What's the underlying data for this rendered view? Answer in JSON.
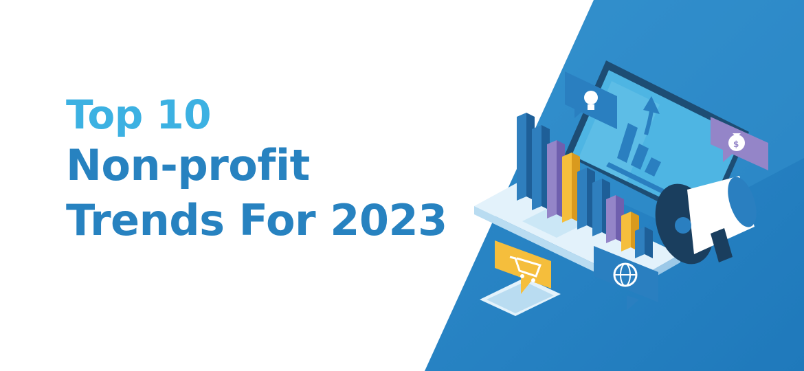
{
  "banner": {
    "title_line1": "Top 10",
    "title_line2": "Non-profit",
    "title_line3": "Trends For 2023"
  },
  "colors": {
    "accent_light_blue": "#3cb1e2",
    "title_blue": "#2782c0",
    "panel_blue": "#2a8dcb",
    "bar_purple": "#9485c8",
    "bar_yellow": "#f5be3c"
  },
  "icons": [
    "lightbulb-icon",
    "money-bag-icon",
    "shopping-cart-icon",
    "globe-icon",
    "megaphone-icon",
    "growth-arrow-icon"
  ]
}
